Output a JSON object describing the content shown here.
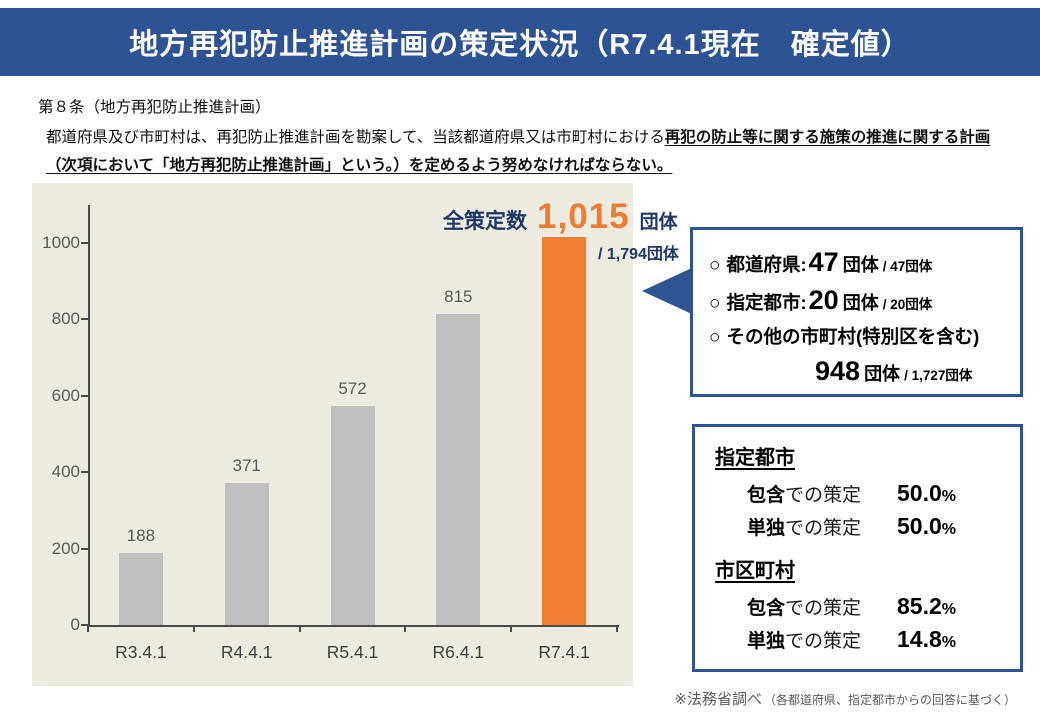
{
  "header": {
    "title": "地方再犯防止推進計画の策定状況（R7.4.1現在　確定値）",
    "bg_color": "#2e5394"
  },
  "article": {
    "heading": "第８条（地方再犯防止推進計画）",
    "body_plain": "都道府県及び市町村は、再犯防止推進計画を勘案して、当該都道府県又は市町村における",
    "body_emphasis": "再犯の防止等に関する施策の推進に関する計画（次項において「地方再犯防止推進計画」という。）を定めるよう努めなければならない。"
  },
  "chart_data": {
    "type": "bar",
    "categories": [
      "R3.4.1",
      "R4.4.1",
      "R5.4.1",
      "R6.4.1",
      "R7.4.1"
    ],
    "values": [
      188,
      371,
      572,
      815,
      1015
    ],
    "value_labels": [
      "188",
      "371",
      "572",
      "815",
      "1,015"
    ],
    "show_value_labels": [
      true,
      true,
      true,
      true,
      false
    ],
    "bar_colors": [
      "#bfbfbf",
      "#bfbfbf",
      "#bfbfbf",
      "#bfbfbf",
      "#ed7d31"
    ],
    "yticks": [
      0,
      200,
      400,
      600,
      800,
      1000
    ],
    "ylim": [
      0,
      1100
    ],
    "title": "",
    "xlabel": "",
    "ylabel": "",
    "grid": false,
    "legend": "none",
    "panel_bg": "#edebe0"
  },
  "annotation": {
    "label": "全策定数",
    "value": "1,015",
    "unit": "団体",
    "denominator": "/ 1,794団体"
  },
  "breakdown_box": {
    "border_color": "#2f5496",
    "rows": [
      {
        "bullet": "○",
        "label": "都道府県:",
        "value": "47",
        "unit": "団体",
        "denominator": "/ 47団体"
      },
      {
        "bullet": "○",
        "label": "指定都市:",
        "value": "20",
        "unit": "団体",
        "denominator": "/ 20団体"
      },
      {
        "bullet": "○",
        "label": "その他の市町村(特別区を含む)",
        "value": "948",
        "unit": "団体",
        "denominator": "/ 1,727団体"
      }
    ]
  },
  "ratio_box": {
    "border_color": "#2f5496",
    "sections": [
      {
        "title": "指定都市",
        "rows": [
          {
            "label_strong": "包含",
            "label_rest": "での策定",
            "value": "50.0",
            "suffix": "%"
          },
          {
            "label_strong": "単独",
            "label_rest": "での策定",
            "value": "50.0",
            "suffix": "%"
          }
        ]
      },
      {
        "title": "市区町村",
        "rows": [
          {
            "label_strong": "包含",
            "label_rest": "での策定",
            "value": "85.2",
            "suffix": "%"
          },
          {
            "label_strong": "単独",
            "label_rest": "での策定",
            "value": "14.8",
            "suffix": "%"
          }
        ]
      }
    ]
  },
  "footer": {
    "source": "※法務省調べ",
    "source_detail": "（各都道府県、指定都市からの回答に基づく）"
  }
}
